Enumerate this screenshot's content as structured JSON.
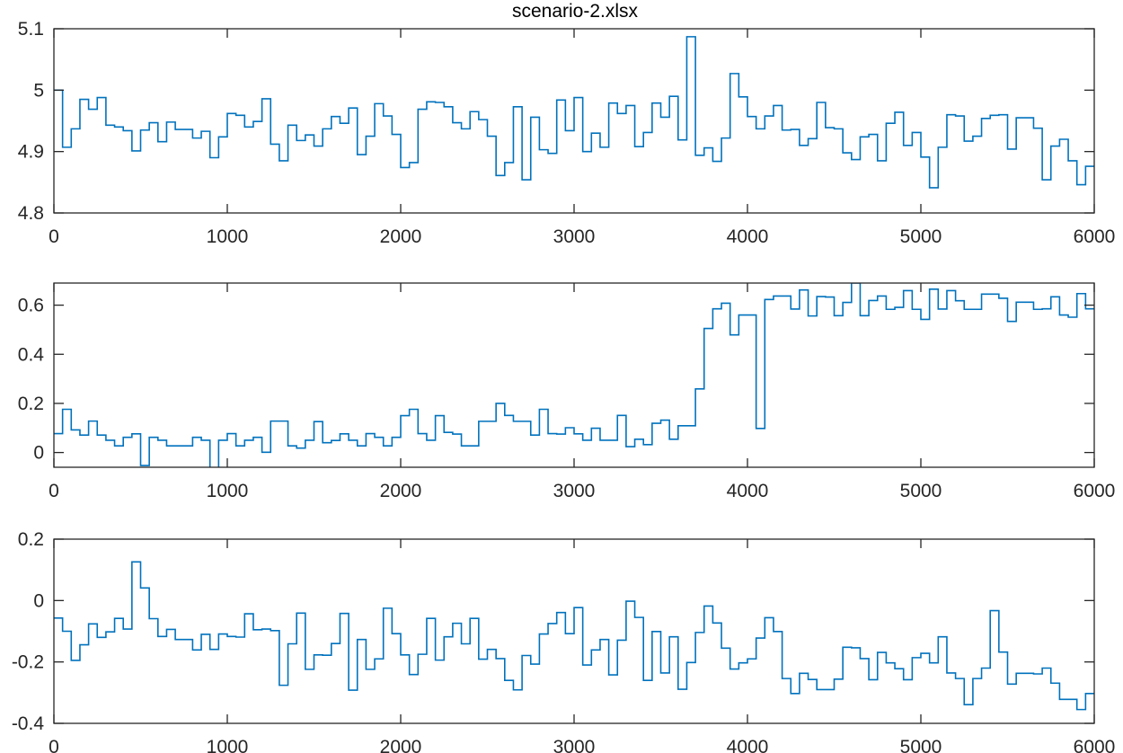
{
  "title": "scenario-2.xlsx",
  "colors": {
    "series": "#0072BD",
    "axis": "#262626"
  },
  "chart_data": [
    {
      "type": "line",
      "style": "stairs",
      "title": "scenario-2.xlsx",
      "xlim": [
        0,
        6000
      ],
      "ylim": [
        4.8,
        5.1
      ],
      "xticks": [
        0,
        1000,
        2000,
        3000,
        4000,
        5000,
        6000
      ],
      "yticks": [
        4.8,
        4.9,
        5,
        5.1
      ],
      "ytick_labels": [
        "4.8",
        "4.9",
        "5",
        "5.1"
      ],
      "grid": false,
      "x_step": 50,
      "values": [
        5.0,
        4.907,
        4.937,
        4.985,
        4.969,
        4.988,
        4.943,
        4.94,
        4.934,
        4.901,
        4.935,
        4.947,
        4.916,
        4.948,
        4.936,
        4.936,
        4.922,
        4.933,
        4.89,
        4.924,
        4.962,
        4.959,
        4.94,
        4.949,
        4.986,
        4.912,
        4.885,
        4.943,
        4.918,
        4.927,
        4.909,
        4.937,
        4.957,
        4.946,
        4.971,
        4.895,
        4.925,
        4.978,
        4.958,
        4.928,
        4.874,
        4.882,
        4.969,
        4.981,
        4.98,
        4.973,
        4.947,
        4.937,
        4.965,
        4.952,
        4.925,
        4.861,
        4.882,
        4.973,
        4.854,
        4.956,
        4.903,
        4.897,
        4.984,
        4.934,
        4.988,
        4.9,
        4.93,
        4.907,
        4.979,
        4.962,
        4.975,
        4.908,
        4.931,
        4.979,
        4.956,
        4.99,
        4.919,
        5.087,
        4.894,
        4.906,
        4.884,
        4.922,
        5.027,
        4.989,
        4.957,
        4.937,
        4.958,
        4.975,
        4.935,
        4.936,
        4.91,
        4.921,
        4.98,
        4.939,
        4.937,
        4.898,
        4.887,
        4.924,
        4.928,
        4.885,
        4.946,
        4.964,
        4.91,
        4.931,
        4.891,
        4.841,
        4.907,
        4.96,
        4.958,
        4.917,
        4.925,
        4.954,
        4.959,
        4.96,
        4.904,
        4.955,
        4.955,
        4.938,
        4.854,
        4.909,
        4.92,
        4.885,
        4.846,
        4.876
      ]
    },
    {
      "type": "line",
      "style": "stairs",
      "xlim": [
        0,
        6000
      ],
      "ylim": [
        -0.06,
        0.69
      ],
      "xticks": [
        0,
        1000,
        2000,
        3000,
        4000,
        5000,
        6000
      ],
      "yticks": [
        0,
        0.2,
        0.4,
        0.6
      ],
      "ytick_labels": [
        "0",
        "0.2",
        "0.4",
        "0.6"
      ],
      "grid": false,
      "x_step": 50,
      "values": [
        0.077,
        0.176,
        0.092,
        0.071,
        0.128,
        0.071,
        0.05,
        0.027,
        0.062,
        0.076,
        -0.053,
        0.062,
        0.05,
        0.027,
        0.027,
        0.027,
        0.062,
        0.05,
        -0.065,
        0.05,
        0.077,
        0.027,
        0.05,
        0.062,
        0.001,
        0.128,
        0.128,
        0.027,
        0.018,
        0.05,
        0.126,
        0.04,
        0.049,
        0.076,
        0.05,
        0.027,
        0.077,
        0.062,
        0.027,
        0.062,
        0.15,
        0.176,
        0.077,
        0.05,
        0.15,
        0.082,
        0.075,
        0.027,
        0.027,
        0.127,
        0.127,
        0.2,
        0.151,
        0.127,
        0.127,
        0.071,
        0.176,
        0.077,
        0.075,
        0.101,
        0.076,
        0.05,
        0.099,
        0.05,
        0.05,
        0.151,
        0.024,
        0.054,
        0.032,
        0.119,
        0.132,
        0.054,
        0.109,
        0.109,
        0.259,
        0.505,
        0.585,
        0.608,
        0.479,
        0.56,
        0.56,
        0.098,
        0.623,
        0.637,
        0.637,
        0.584,
        0.662,
        0.556,
        0.635,
        0.633,
        0.557,
        0.611,
        0.69,
        0.557,
        0.619,
        0.637,
        0.583,
        0.591,
        0.659,
        0.583,
        0.542,
        0.665,
        0.584,
        0.659,
        0.618,
        0.583,
        0.583,
        0.645,
        0.645,
        0.628,
        0.534,
        0.612,
        0.612,
        0.583,
        0.585,
        0.634,
        0.56,
        0.551,
        0.647,
        0.585
      ]
    },
    {
      "type": "line",
      "style": "stairs",
      "xlim": [
        0,
        6000
      ],
      "ylim": [
        -0.4,
        0.2
      ],
      "xticks": [
        0,
        1000,
        2000,
        3000,
        4000,
        5000,
        6000
      ],
      "yticks": [
        -0.4,
        -0.2,
        0,
        0.2
      ],
      "ytick_labels": [
        "-0.4",
        "-0.2",
        "0",
        "0.2"
      ],
      "grid": false,
      "x_step": 50,
      "values": [
        -0.057,
        -0.1,
        -0.195,
        -0.144,
        -0.076,
        -0.12,
        -0.102,
        -0.058,
        -0.093,
        0.126,
        0.041,
        -0.059,
        -0.117,
        -0.094,
        -0.127,
        -0.127,
        -0.161,
        -0.11,
        -0.159,
        -0.109,
        -0.117,
        -0.119,
        -0.043,
        -0.095,
        -0.093,
        -0.098,
        -0.276,
        -0.141,
        -0.041,
        -0.224,
        -0.177,
        -0.178,
        -0.14,
        -0.042,
        -0.292,
        -0.127,
        -0.224,
        -0.19,
        -0.025,
        -0.108,
        -0.177,
        -0.241,
        -0.175,
        -0.058,
        -0.194,
        -0.118,
        -0.074,
        -0.141,
        -0.058,
        -0.191,
        -0.159,
        -0.189,
        -0.26,
        -0.291,
        -0.179,
        -0.207,
        -0.109,
        -0.075,
        -0.039,
        -0.108,
        -0.023,
        -0.21,
        -0.161,
        -0.127,
        -0.242,
        -0.129,
        -0.002,
        -0.055,
        -0.26,
        -0.101,
        -0.236,
        -0.118,
        -0.289,
        -0.202,
        -0.104,
        -0.018,
        -0.073,
        -0.155,
        -0.223,
        -0.203,
        -0.19,
        -0.122,
        -0.056,
        -0.101,
        -0.254,
        -0.303,
        -0.237,
        -0.257,
        -0.29,
        -0.29,
        -0.256,
        -0.152,
        -0.154,
        -0.189,
        -0.258,
        -0.169,
        -0.203,
        -0.222,
        -0.258,
        -0.186,
        -0.172,
        -0.203,
        -0.118,
        -0.236,
        -0.254,
        -0.339,
        -0.254,
        -0.22,
        -0.033,
        -0.168,
        -0.272,
        -0.237,
        -0.237,
        -0.239,
        -0.22,
        -0.269,
        -0.322,
        -0.322,
        -0.355,
        -0.303
      ]
    }
  ]
}
